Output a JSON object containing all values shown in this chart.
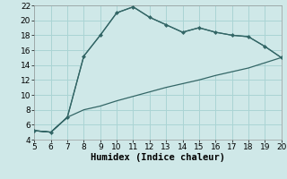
{
  "xlabel": "Humidex (Indice chaleur)",
  "background_color": "#cfe8e8",
  "grid_color": "#aad4d4",
  "line_color": "#336666",
  "marker_color": "#336666",
  "xlim": [
    5,
    20
  ],
  "ylim": [
    4,
    22
  ],
  "xticks": [
    5,
    6,
    7,
    8,
    9,
    10,
    11,
    12,
    13,
    14,
    15,
    16,
    17,
    18,
    19,
    20
  ],
  "yticks": [
    4,
    6,
    8,
    10,
    12,
    14,
    16,
    18,
    20,
    22
  ],
  "upper_x": [
    5,
    6,
    7,
    8,
    9,
    10,
    11,
    12,
    13,
    14,
    15,
    16,
    17,
    18,
    19,
    20
  ],
  "upper_y": [
    5.2,
    5.0,
    7.0,
    15.2,
    18.0,
    21.0,
    21.8,
    20.4,
    19.4,
    18.4,
    19.0,
    18.4,
    18.0,
    17.8,
    16.5,
    15.0
  ],
  "lower_x": [
    5,
    6,
    7,
    8,
    9,
    10,
    11,
    12,
    13,
    14,
    15,
    16,
    17,
    18,
    19,
    20
  ],
  "lower_y": [
    5.2,
    5.0,
    7.0,
    8.0,
    8.5,
    9.2,
    9.8,
    10.4,
    11.0,
    11.5,
    12.0,
    12.6,
    13.1,
    13.6,
    14.3,
    15.0
  ],
  "xlabel_fontsize": 7.5,
  "tick_fontsize": 6.5
}
